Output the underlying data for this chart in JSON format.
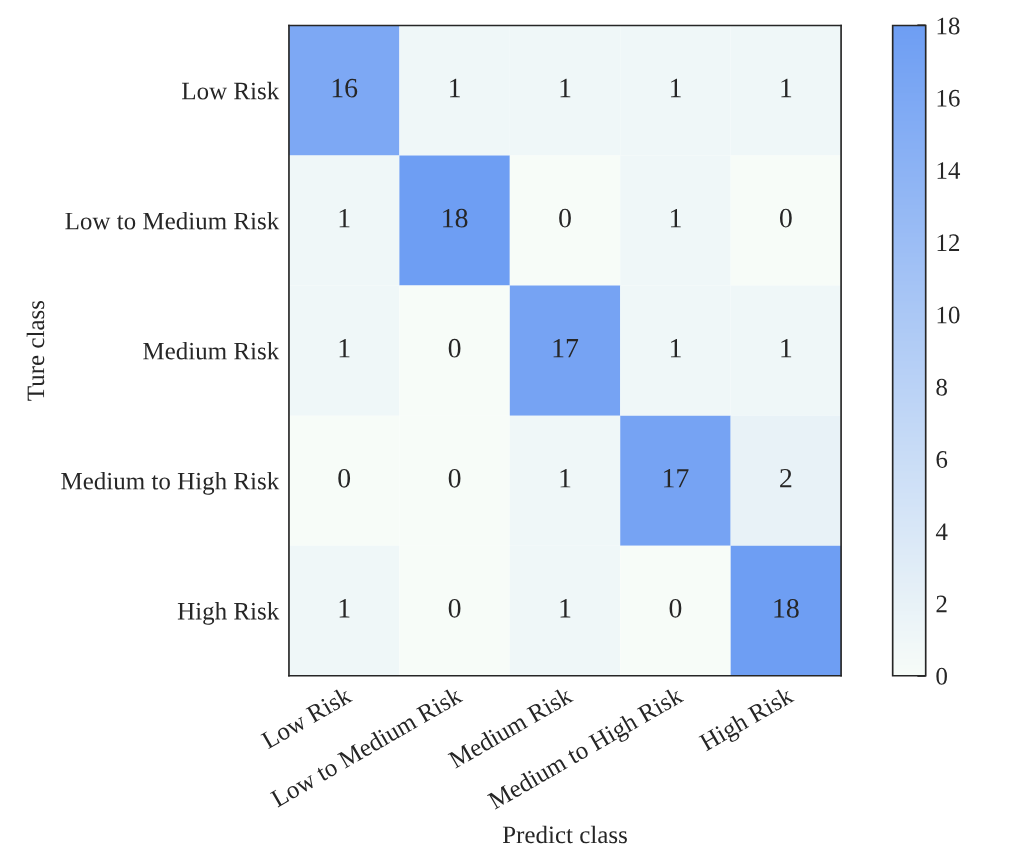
{
  "chart_data": {
    "type": "heatmap",
    "xlabel": "Predict class",
    "ylabel": "Ture class",
    "categories": [
      "Low Risk",
      "Low to Medium Risk",
      "Medium Risk",
      "Medium to High Risk",
      "High Risk"
    ],
    "y_categories": [
      "Low Risk",
      "Low to Medium Risk",
      "Medium Risk",
      "Medium to High Risk",
      "High Risk"
    ],
    "cells": [
      [
        16,
        1,
        1,
        1,
        1
      ],
      [
        1,
        18,
        0,
        1,
        0
      ],
      [
        1,
        0,
        17,
        1,
        1
      ],
      [
        0,
        0,
        1,
        17,
        2
      ],
      [
        1,
        0,
        1,
        0,
        18
      ]
    ],
    "clim": [
      0,
      18
    ],
    "cticks": [
      0,
      2,
      4,
      6,
      8,
      10,
      12,
      14,
      16,
      18
    ],
    "data_labels": true
  }
}
